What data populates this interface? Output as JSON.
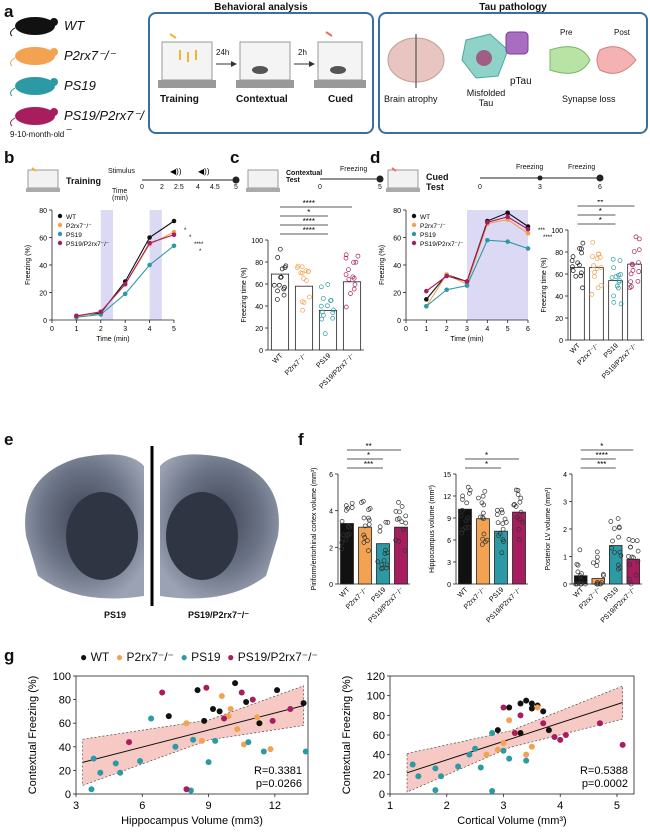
{
  "panel_labels": [
    "a",
    "b",
    "c",
    "d",
    "e",
    "f",
    "g"
  ],
  "panel_a": {
    "genotypes": [
      "WT",
      "P2rx7⁻/⁻",
      "PS19",
      "PS19/P2rx7⁻/⁻"
    ],
    "genotype_colors": [
      "#111111",
      "#f2a251",
      "#2b9aa5",
      "#a81d5e"
    ],
    "age": "9-10-month-old",
    "behavior_title": "Behavioral analysis",
    "behavior_steps": [
      "Training",
      "Contextual",
      "Cued"
    ],
    "behavior_delays": [
      "24h",
      "2h"
    ],
    "tau_title": "Tau pathology",
    "tau_items": [
      "Brain atrophy",
      "Misfolded Tau",
      "pTau",
      "Synapse loss"
    ],
    "synapse_labels": [
      "Pre",
      "Post"
    ]
  },
  "panel_b": {
    "icon_label": "Training",
    "stimulus_label": "Stimulus",
    "time_label": "Time (min)",
    "time_ticks": [
      "0",
      "2",
      "2.5",
      "4",
      "4.5",
      "5"
    ]
  },
  "panel_c": {
    "icon_label": "Contextual Test",
    "freezing_label": "Freezing",
    "ticks": [
      "0",
      "5"
    ]
  },
  "panel_d": {
    "icon_label": "Cued Test",
    "freezing_label": "Freezing",
    "ticks": [
      "0",
      "3",
      "6"
    ]
  },
  "panel_e": {
    "labels": [
      "PS19",
      "PS19/P2rx7⁻/⁻"
    ]
  },
  "chart_data": [
    {
      "id": "b",
      "type": "line",
      "xlabel": "Time (min)",
      "ylabel": "Freezing (%)",
      "x": [
        1,
        2,
        3,
        4,
        5
      ],
      "xlim": [
        0,
        5
      ],
      "ylim": [
        0,
        80
      ],
      "xticks": [
        "0",
        "1",
        "2",
        "3",
        "4",
        "5"
      ],
      "yticks": [
        "0",
        "20",
        "40",
        "60",
        "80"
      ],
      "series": [
        {
          "name": "WT",
          "values": [
            3,
            5,
            28,
            60,
            72
          ]
        },
        {
          "name": "P2rx7⁻/⁻",
          "values": [
            2,
            6,
            26,
            55,
            64
          ]
        },
        {
          "name": "PS19",
          "values": [
            2,
            4,
            19,
            40,
            54
          ]
        },
        {
          "name": "PS19/P2rx7⁻/⁻",
          "values": [
            3,
            6,
            26,
            56,
            62
          ]
        }
      ],
      "significance": [
        "*",
        "*",
        "****",
        "*"
      ]
    },
    {
      "id": "c",
      "type": "bar",
      "ylabel": "Freezing time (%)",
      "ylim": [
        0,
        100
      ],
      "yticks": [
        "0",
        "20",
        "40",
        "60",
        "80",
        "100"
      ],
      "categories": [
        "WT",
        "P2rx7⁻/⁻",
        "PS19",
        "PS19/P2rx7⁻/⁻"
      ],
      "values": [
        69,
        58,
        36,
        62
      ],
      "significance": [
        "****",
        "****",
        "*",
        "****"
      ]
    },
    {
      "id": "d-line",
      "type": "line",
      "xlabel": "Time (min)",
      "ylabel": "Freezing (%)",
      "x": [
        1,
        2,
        3,
        4,
        5,
        6
      ],
      "xlim": [
        0,
        6
      ],
      "ylim": [
        0,
        80
      ],
      "xticks": [
        "0",
        "1",
        "2",
        "3",
        "4",
        "5",
        "6"
      ],
      "yticks": [
        "0",
        "20",
        "40",
        "60",
        "80"
      ],
      "series": [
        {
          "name": "WT",
          "values": [
            15,
            33,
            28,
            72,
            78,
            68
          ]
        },
        {
          "name": "P2rx7⁻/⁻",
          "values": [
            10,
            33,
            26,
            70,
            73,
            63
          ]
        },
        {
          "name": "PS19",
          "values": [
            10,
            22,
            25,
            58,
            57,
            52
          ]
        },
        {
          "name": "PS19/P2rx7⁻/⁻",
          "values": [
            21,
            32,
            28,
            71,
            75,
            66
          ]
        }
      ],
      "significance": [
        "***",
        "****"
      ]
    },
    {
      "id": "d-bar",
      "type": "bar",
      "ylabel": "Freezing time (%)",
      "ylim": [
        0,
        100
      ],
      "yticks": [
        "0",
        "20",
        "40",
        "60",
        "80",
        "100"
      ],
      "categories": [
        "WT",
        "P2rx7⁻/⁻",
        "PS19",
        "PS19/P2rx7⁻/⁻"
      ],
      "values": [
        66,
        66,
        54,
        69
      ],
      "significance": [
        "*",
        "*",
        "**"
      ]
    },
    {
      "id": "f1",
      "type": "bar",
      "ylabel": "Piriform/entorhinal cortex volume (mm³)",
      "ylim": [
        0,
        6
      ],
      "yticks": [
        "0",
        "2",
        "4",
        "6"
      ],
      "categories": [
        "WT",
        "P2rx7⁻/⁻",
        "PS19",
        "PS19/P2rx7⁻/⁻"
      ],
      "values": [
        3.3,
        3.1,
        2.2,
        3.1
      ],
      "significance": [
        "***",
        "*",
        "**"
      ]
    },
    {
      "id": "f2",
      "type": "bar",
      "ylabel": "Hippocampus volume (mm³)",
      "ylim": [
        0,
        15
      ],
      "yticks": [
        "0",
        "3",
        "6",
        "9",
        "12",
        "15"
      ],
      "categories": [
        "WT",
        "P2rx7⁻/⁻",
        "PS19",
        "PS19/P2rx7⁻/⁻"
      ],
      "values": [
        10.2,
        8.9,
        7.2,
        9.8
      ],
      "significance": [
        "*",
        "*"
      ]
    },
    {
      "id": "f3",
      "type": "bar",
      "ylabel": "Posterior LV volume (mm³)",
      "ylim": [
        0,
        4
      ],
      "yticks": [
        "0",
        "1",
        "2",
        "3",
        "4"
      ],
      "categories": [
        "WT",
        "P2rx7⁻/⁻",
        "PS19",
        "PS19/P2rx7⁻/⁻"
      ],
      "values": [
        0.3,
        0.2,
        1.4,
        0.9
      ],
      "significance": [
        "***",
        "****",
        "*"
      ]
    },
    {
      "id": "g1",
      "type": "scatter",
      "xlabel": "Hippocampus Volume (mm3)",
      "ylabel": "Contextual Freezing (%)",
      "xlim": [
        3,
        13.5
      ],
      "ylim": [
        0,
        100
      ],
      "xticks": [
        "3",
        "6",
        "9",
        "12"
      ],
      "yticks": [
        "0",
        "20",
        "40",
        "60",
        "80",
        "100"
      ],
      "stats": [
        "R=0.3381",
        "p=0.0266"
      ],
      "points": [
        {
          "g": 0,
          "x": 7.2,
          "y": 66
        },
        {
          "g": 0,
          "x": 8.5,
          "y": 88
        },
        {
          "g": 0,
          "x": 9.5,
          "y": 70
        },
        {
          "g": 0,
          "x": 10.2,
          "y": 94
        },
        {
          "g": 0,
          "x": 10.7,
          "y": 78
        },
        {
          "g": 0,
          "x": 11.3,
          "y": 60
        },
        {
          "g": 0,
          "x": 12.1,
          "y": 88
        },
        {
          "g": 0,
          "x": 13.3,
          "y": 77
        },
        {
          "g": 0,
          "x": 8.8,
          "y": 62
        },
        {
          "g": 0,
          "x": 9.2,
          "y": 72
        },
        {
          "g": 1,
          "x": 8.0,
          "y": 60
        },
        {
          "g": 1,
          "x": 8.7,
          "y": 45
        },
        {
          "g": 1,
          "x": 9.6,
          "y": 83
        },
        {
          "g": 1,
          "x": 9.9,
          "y": 66
        },
        {
          "g": 1,
          "x": 10.3,
          "y": 55
        },
        {
          "g": 1,
          "x": 10.6,
          "y": 42
        },
        {
          "g": 1,
          "x": 11.2,
          "y": 65
        },
        {
          "g": 1,
          "x": 11.8,
          "y": 38
        },
        {
          "g": 1,
          "x": 10.0,
          "y": 72
        },
        {
          "g": 2,
          "x": 3.8,
          "y": 30
        },
        {
          "g": 2,
          "x": 4.1,
          "y": 18
        },
        {
          "g": 2,
          "x": 4.8,
          "y": 26
        },
        {
          "g": 2,
          "x": 5.0,
          "y": 18
        },
        {
          "g": 2,
          "x": 5.9,
          "y": 28
        },
        {
          "g": 2,
          "x": 6.4,
          "y": 64
        },
        {
          "g": 2,
          "x": 7.5,
          "y": 40
        },
        {
          "g": 2,
          "x": 8.3,
          "y": 46
        },
        {
          "g": 2,
          "x": 9.0,
          "y": 27
        },
        {
          "g": 2,
          "x": 9.3,
          "y": 45
        },
        {
          "g": 2,
          "x": 10.8,
          "y": 44
        },
        {
          "g": 2,
          "x": 11.5,
          "y": 36
        },
        {
          "g": 2,
          "x": 13.4,
          "y": 36
        },
        {
          "g": 2,
          "x": 3.7,
          "y": 4
        },
        {
          "g": 2,
          "x": 8.2,
          "y": 3
        },
        {
          "g": 3,
          "x": 5.4,
          "y": 44
        },
        {
          "g": 3,
          "x": 6.9,
          "y": 86
        },
        {
          "g": 3,
          "x": 8.0,
          "y": 4
        },
        {
          "g": 3,
          "x": 8.9,
          "y": 90
        },
        {
          "g": 3,
          "x": 9.7,
          "y": 64
        },
        {
          "g": 3,
          "x": 10.5,
          "y": 86
        },
        {
          "g": 3,
          "x": 11.9,
          "y": 62
        },
        {
          "g": 3,
          "x": 12.7,
          "y": 72
        },
        {
          "g": 3,
          "x": 11.0,
          "y": 80
        }
      ]
    },
    {
      "id": "g2",
      "type": "scatter",
      "xlabel": "Cortical Volume (mm³)",
      "ylabel": "Contextual Freezing (%)",
      "xlim": [
        1,
        5.3
      ],
      "ylim": [
        0,
        120
      ],
      "xticks": [
        "1",
        "2",
        "3",
        "4",
        "5"
      ],
      "yticks": [
        "0",
        "20",
        "40",
        "60",
        "80",
        "100",
        "120"
      ],
      "stats": [
        "R=0.5388",
        "p=0.0002"
      ],
      "points": [
        {
          "g": 0,
          "x": 2.9,
          "y": 65
        },
        {
          "g": 0,
          "x": 3.1,
          "y": 88
        },
        {
          "g": 0,
          "x": 3.3,
          "y": 92
        },
        {
          "g": 0,
          "x": 3.4,
          "y": 95
        },
        {
          "g": 0,
          "x": 3.5,
          "y": 87
        },
        {
          "g": 0,
          "x": 3.6,
          "y": 90
        },
        {
          "g": 0,
          "x": 3.7,
          "y": 84
        },
        {
          "g": 0,
          "x": 3.8,
          "y": 65
        },
        {
          "g": 0,
          "x": 3.3,
          "y": 62
        },
        {
          "g": 0,
          "x": 3.5,
          "y": 92
        },
        {
          "g": 1,
          "x": 2.7,
          "y": 40
        },
        {
          "g": 1,
          "x": 3.0,
          "y": 52
        },
        {
          "g": 1,
          "x": 3.2,
          "y": 62
        },
        {
          "g": 1,
          "x": 3.4,
          "y": 40
        },
        {
          "g": 1,
          "x": 3.5,
          "y": 48
        },
        {
          "g": 1,
          "x": 3.6,
          "y": 88
        },
        {
          "g": 1,
          "x": 3.1,
          "y": 75
        },
        {
          "g": 1,
          "x": 2.9,
          "y": 45
        },
        {
          "g": 2,
          "x": 1.4,
          "y": 30
        },
        {
          "g": 2,
          "x": 1.5,
          "y": 18
        },
        {
          "g": 2,
          "x": 1.8,
          "y": 26
        },
        {
          "g": 2,
          "x": 1.9,
          "y": 18
        },
        {
          "g": 2,
          "x": 2.2,
          "y": 28
        },
        {
          "g": 2,
          "x": 2.4,
          "y": 40
        },
        {
          "g": 2,
          "x": 2.5,
          "y": 46
        },
        {
          "g": 2,
          "x": 2.6,
          "y": 27
        },
        {
          "g": 2,
          "x": 2.8,
          "y": 62
        },
        {
          "g": 2,
          "x": 3.0,
          "y": 44
        },
        {
          "g": 2,
          "x": 3.1,
          "y": 36
        },
        {
          "g": 2,
          "x": 3.4,
          "y": 34
        },
        {
          "g": 2,
          "x": 1.8,
          "y": 4
        },
        {
          "g": 2,
          "x": 2.8,
          "y": 3
        },
        {
          "g": 3,
          "x": 3.0,
          "y": 88
        },
        {
          "g": 3,
          "x": 3.2,
          "y": 62
        },
        {
          "g": 3,
          "x": 3.7,
          "y": 72
        },
        {
          "g": 3,
          "x": 3.9,
          "y": 58
        },
        {
          "g": 3,
          "x": 4.0,
          "y": 55
        },
        {
          "g": 3,
          "x": 4.1,
          "y": 60
        },
        {
          "g": 3,
          "x": 4.7,
          "y": 72
        },
        {
          "g": 3,
          "x": 5.1,
          "y": 50
        },
        {
          "g": 3,
          "x": 3.3,
          "y": 80
        }
      ]
    }
  ]
}
